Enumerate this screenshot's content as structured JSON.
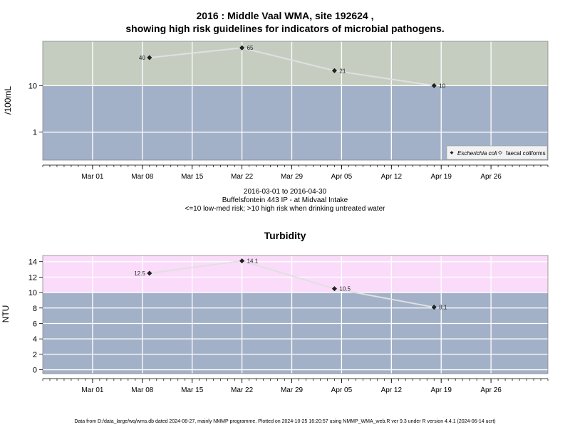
{
  "title_line1": "2016 : Middle Vaal WMA, site 192624 ,",
  "title_line2": "showing high risk guidelines for indicators of microbial pathogens.",
  "subtitle_dates": "2016-03-01 to 2016-04-30",
  "subtitle_site": "Buffelsfontein 443 IP - at Midvaal Intake",
  "subtitle_risk": "<=10 low-med risk; >10 high risk when drinking untreated water",
  "turbidity_title": "Turbidity",
  "footer": "Data from D:/data_large/wq/wms.db dated 2024-08-27, mainly NMMP programme. Plotted on 2024-10-25 16:20:57 using NMMP_WMA_web.R ver 9.3 under R version 4.4.1 (2024-06-14 ucrt)",
  "colors": {
    "high_risk_microbial": "#c5cdc1",
    "low_risk": "#a3b1c8",
    "high_risk_turbidity": "#fadcfa",
    "line": "#e0e0e0",
    "grid": "#ffffff"
  },
  "chart_data": [
    {
      "type": "line",
      "ylabel": "/100mL",
      "y_scale": "log",
      "yticks": [
        "1",
        "10"
      ],
      "guideline": 10,
      "x_tick_labels": [
        "Mar 01",
        "Mar 08",
        "Mar 15",
        "Mar 22",
        "Mar 29",
        "Apr 05",
        "Apr 12",
        "Apr 19",
        "Apr 26"
      ],
      "x_tick_dates": [
        "2016-03-01",
        "2016-03-08",
        "2016-03-15",
        "2016-03-22",
        "2016-03-29",
        "2016-04-05",
        "2016-04-12",
        "2016-04-19",
        "2016-04-26"
      ],
      "xlim": [
        "2016-02-23",
        "2016-05-04"
      ],
      "ylim": [
        0.25,
        90
      ],
      "legend_position": "bottom-right",
      "series": [
        {
          "name": "Escherichia coli",
          "marker": "filled-diamond",
          "x": [
            "2016-03-09",
            "2016-03-22",
            "2016-04-04",
            "2016-04-18"
          ],
          "y": [
            40,
            65,
            21,
            10
          ],
          "labels": [
            "40",
            "65",
            "21",
            "10"
          ]
        },
        {
          "name": "faecal coliforms",
          "marker": "open-diamond",
          "x": [],
          "y": [],
          "labels": []
        }
      ]
    },
    {
      "type": "line",
      "title": "Turbidity",
      "ylabel": "NTU",
      "yticks": [
        "0",
        "2",
        "4",
        "6",
        "8",
        "10",
        "12",
        "14"
      ],
      "guideline": 10,
      "x_tick_labels": [
        "Mar 01",
        "Mar 08",
        "Mar 15",
        "Mar 22",
        "Mar 29",
        "Apr 05",
        "Apr 12",
        "Apr 19",
        "Apr 26"
      ],
      "x_tick_dates": [
        "2016-03-01",
        "2016-03-08",
        "2016-03-15",
        "2016-03-22",
        "2016-03-29",
        "2016-04-05",
        "2016-04-12",
        "2016-04-19",
        "2016-04-26"
      ],
      "xlim": [
        "2016-02-23",
        "2016-05-04"
      ],
      "ylim": [
        -0.5,
        14.8
      ],
      "series": [
        {
          "marker": "filled-diamond",
          "x": [
            "2016-03-09",
            "2016-03-22",
            "2016-04-04",
            "2016-04-18"
          ],
          "y": [
            12.5,
            14.1,
            10.5,
            8.1
          ],
          "labels": [
            "12.5",
            "14.1",
            "10.5",
            "8.1"
          ]
        }
      ]
    }
  ]
}
